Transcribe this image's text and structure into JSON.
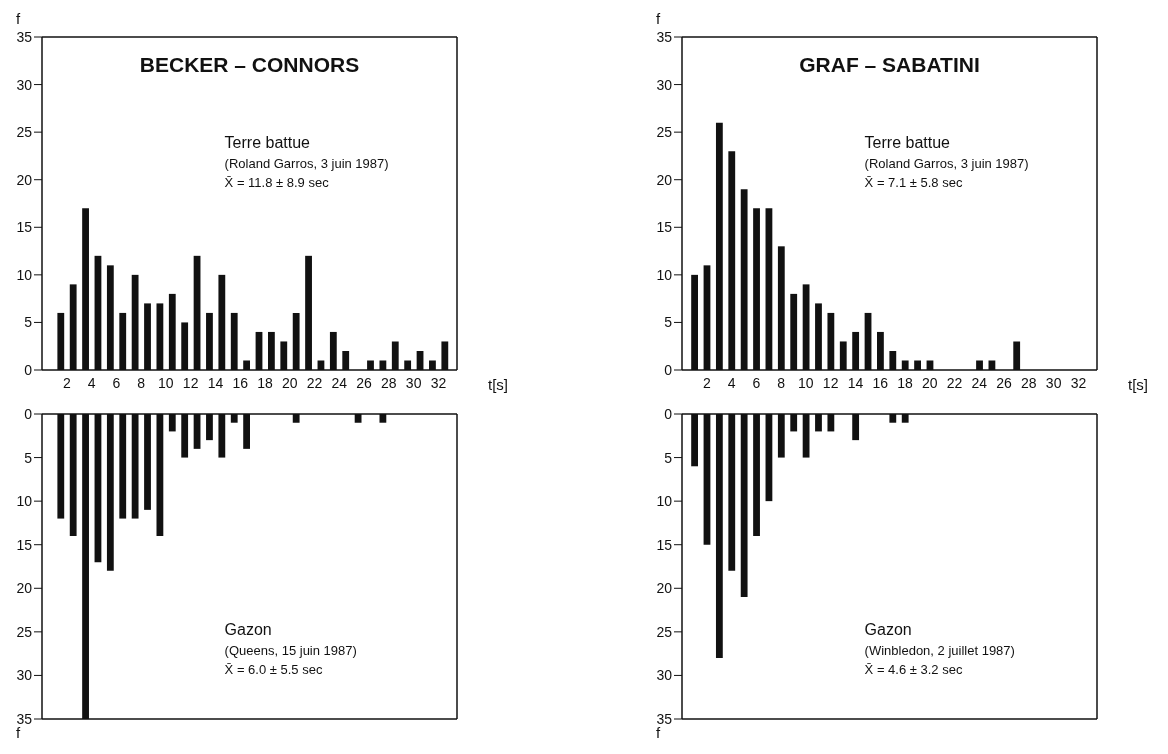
{
  "chart_data": [
    {
      "type": "histogram",
      "title": "BECKER – CONNORS",
      "xlabel": "t[s]",
      "ylabel": "f",
      "color": "#111111",
      "bins": [
        1,
        2,
        3,
        4,
        5,
        6,
        7,
        8,
        9,
        10,
        11,
        12,
        13,
        14,
        15,
        16,
        17,
        18,
        19,
        20,
        21,
        22,
        23,
        24,
        25,
        26,
        27,
        28,
        29,
        30,
        31,
        32,
        33
      ],
      "values": [
        6,
        9,
        17,
        12,
        11,
        6,
        10,
        7,
        7,
        8,
        5,
        12,
        6,
        10,
        6,
        1,
        4,
        4,
        3,
        6,
        12,
        1,
        4,
        2,
        0,
        1,
        1,
        3,
        1,
        2,
        1,
        3
      ],
      "xlim": [
        0,
        33.5
      ],
      "xticks": [
        2,
        4,
        6,
        8,
        10,
        12,
        14,
        16,
        18,
        20,
        22,
        24,
        26,
        28,
        30,
        32
      ],
      "ylim": [
        0,
        35
      ],
      "yticks": [
        0,
        5,
        10,
        15,
        20,
        25,
        30,
        35
      ],
      "annotations": [
        "Terre battue",
        "(Roland Garros, 3 juin 1987)",
        "X̄ = 11.8 ± 8.9 sec"
      ]
    },
    {
      "type": "histogram",
      "title": "GRAF – SABATINI",
      "xlabel": "t[s]",
      "ylabel": "f",
      "color": "#111111",
      "bins": [
        0.5,
        1.5,
        2.5,
        3.5,
        4.5,
        5.5,
        6.5,
        7.5,
        8.5,
        9.5,
        10.5,
        11.5,
        12.5,
        13.5,
        14.5,
        15.5,
        16.5,
        17.5,
        18.5,
        19.5,
        20.5,
        21.5,
        22.5,
        23.5,
        24.5,
        25.5,
        26.5,
        27.5,
        28.5,
        29.5,
        30.5,
        31.5,
        32.5
      ],
      "values": [
        10,
        11,
        26,
        23,
        19,
        17,
        17,
        13,
        8,
        9,
        7,
        6,
        3,
        4,
        6,
        4,
        2,
        1,
        1,
        1,
        0,
        0,
        0,
        1,
        1,
        0,
        3,
        0,
        0,
        0,
        0,
        0
      ],
      "xlim": [
        0,
        33.5
      ],
      "xticks": [
        2,
        4,
        6,
        8,
        10,
        12,
        14,
        16,
        18,
        20,
        22,
        24,
        26,
        28,
        30,
        32
      ],
      "ylim": [
        0,
        35
      ],
      "yticks": [
        0,
        5,
        10,
        15,
        20,
        25,
        30,
        35
      ],
      "annotations": [
        "Terre battue",
        "(Roland Garros, 3 juin 1987)",
        "X̄ = 7.1 ± 5.8 sec"
      ]
    },
    {
      "type": "histogram",
      "ylabel": "f",
      "color": "#111111",
      "tick_labels": "y",
      "bins": [
        1,
        2,
        3,
        4,
        5,
        6,
        7,
        8,
        9,
        10,
        11,
        12,
        13,
        14,
        15,
        16,
        17,
        18,
        19,
        20,
        21,
        22,
        23,
        24,
        25,
        26,
        27,
        28,
        29,
        30,
        31,
        32,
        33
      ],
      "values": [
        12,
        14,
        35,
        17,
        18,
        12,
        12,
        11,
        14,
        2,
        5,
        4,
        3,
        5,
        1,
        4,
        0,
        0,
        0,
        1,
        0,
        0,
        0,
        0,
        1,
        0,
        1,
        0,
        0,
        0,
        0,
        0
      ],
      "xlim": [
        0,
        33.5
      ],
      "ylim": [
        35,
        0
      ],
      "yticks": [
        0,
        5,
        10,
        15,
        20,
        25,
        30,
        35
      ],
      "annotations": [
        "Gazon",
        "(Queens, 15 juin 1987)",
        "X̄ = 6.0 ± 5.5 sec"
      ]
    },
    {
      "type": "histogram",
      "ylabel": "f",
      "color": "#111111",
      "tick_labels": "y",
      "bins": [
        0.5,
        1.5,
        2.5,
        3.5,
        4.5,
        5.5,
        6.5,
        7.5,
        8.5,
        9.5,
        10.5,
        11.5,
        12.5,
        13.5,
        14.5,
        15.5,
        16.5,
        17.5,
        18.5,
        19.5,
        20.5,
        21.5,
        22.5,
        23.5,
        24.5,
        25.5,
        26.5,
        27.5,
        28.5,
        29.5,
        30.5,
        31.5,
        32.5
      ],
      "values": [
        6,
        15,
        28,
        18,
        21,
        14,
        10,
        5,
        2,
        5,
        2,
        2,
        0,
        3,
        0,
        0,
        1,
        1,
        0,
        0,
        0,
        0,
        0,
        0,
        0,
        0,
        0,
        0,
        0,
        0,
        0,
        0
      ],
      "xlim": [
        0,
        33.5
      ],
      "ylim": [
        35,
        0
      ],
      "yticks": [
        0,
        5,
        10,
        15,
        20,
        25,
        30,
        35
      ],
      "annotations": [
        "Gazon",
        "(Winbledon, 2 juillet 1987)",
        "X̄ = 4.6 ± 3.2 sec"
      ]
    }
  ]
}
